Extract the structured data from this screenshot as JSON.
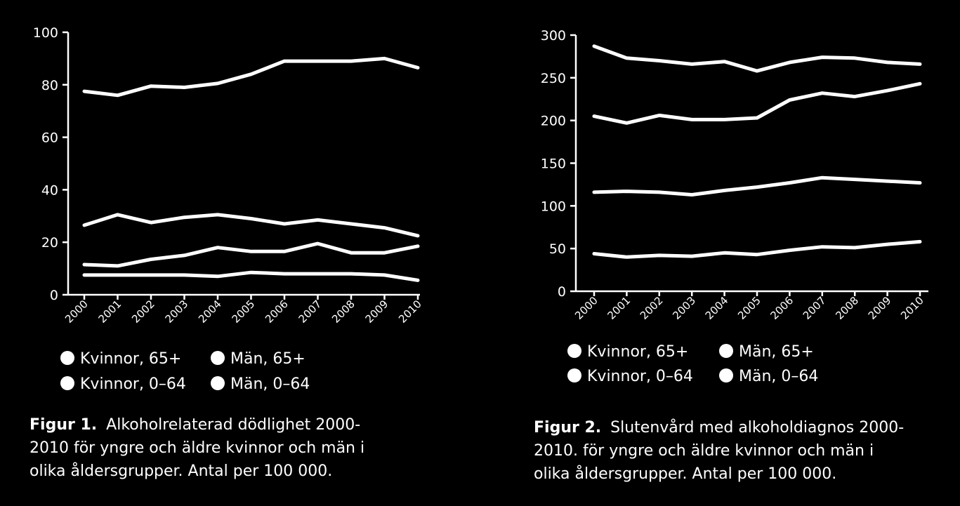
{
  "chart_data": [
    {
      "type": "line",
      "x": [
        "2000",
        "2001",
        "2002",
        "2003",
        "2004",
        "2005",
        "2006",
        "2007",
        "2008",
        "2009",
        "2010"
      ],
      "ylim": [
        0,
        100
      ],
      "yticks": [
        "100",
        "80",
        "60",
        "40",
        "20",
        "0"
      ],
      "grid": false,
      "lines": [
        {
          "values": [
            77.5,
            76,
            79.5,
            79,
            80.5,
            84,
            89,
            89,
            89,
            90,
            86.5
          ]
        },
        {
          "values": [
            26.5,
            30.5,
            27.5,
            29.5,
            30.5,
            29,
            27,
            28.5,
            27,
            25.5,
            22.5
          ]
        },
        {
          "values": [
            11.5,
            11,
            13.5,
            15,
            18,
            16.5,
            16.5,
            19.5,
            16,
            16,
            18.5
          ]
        },
        {
          "values": [
            7.5,
            7.5,
            7.5,
            7.5,
            7,
            8.5,
            8,
            8,
            8,
            7.5,
            5.5
          ]
        }
      ],
      "legend": {
        "placement": "bottom",
        "entries": [
          "Kvinnor, 65+",
          "Män, 65+",
          "Kvinnor, 0–64",
          "Män, 0–64"
        ]
      },
      "caption": {
        "label": "Figur 1.",
        "line1": "Alkoholrelaterad dödlighet 2000-",
        "line2": "2010 för yngre och äldre kvinnor och män i",
        "line3": "olika åldersgrupper. Antal per 100 000."
      }
    },
    {
      "type": "line",
      "x": [
        "2000",
        "2001",
        "2002",
        "2003",
        "2004",
        "2005",
        "2006",
        "2007",
        "2008",
        "2009",
        "2010"
      ],
      "ylim": [
        0,
        300
      ],
      "yticks": [
        "300",
        "250",
        "200",
        "150",
        "100",
        "50",
        "0"
      ],
      "grid": false,
      "lines": [
        {
          "values": [
            287,
            273,
            270,
            266,
            269,
            258,
            268,
            274,
            273,
            268,
            266
          ]
        },
        {
          "values": [
            205,
            197,
            206,
            201,
            201,
            203,
            224,
            232,
            228,
            235,
            243
          ]
        },
        {
          "values": [
            116,
            117,
            116,
            113,
            118,
            122,
            127,
            133,
            131,
            129,
            127
          ]
        },
        {
          "values": [
            44,
            40,
            42,
            41,
            45,
            43,
            48,
            52,
            51,
            55,
            58
          ]
        }
      ],
      "legend": {
        "placement": "bottom",
        "entries": [
          "Kvinnor, 65+",
          "Män, 65+",
          "Kvinnor, 0–64",
          "Män, 0–64"
        ]
      },
      "caption": {
        "label": "Figur 2.",
        "line1": "Slutenvård med alkoholdiagnos 2000-",
        "line2": "2010. för yngre och äldre kvinnor och män i",
        "line3": "olika åldersgrupper. Antal per 100 000."
      }
    }
  ]
}
